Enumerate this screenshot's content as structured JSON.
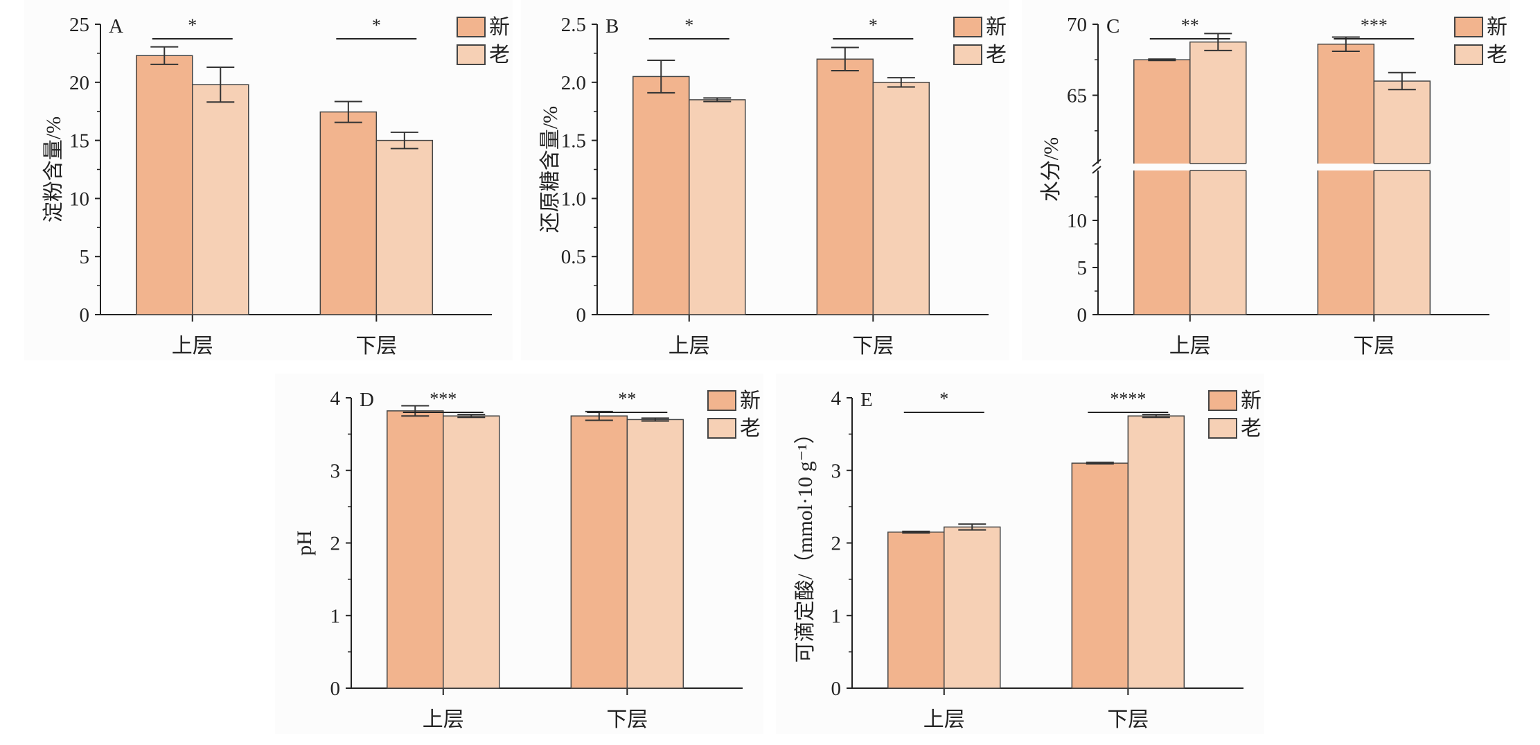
{
  "chart_data": [
    {
      "type": "bar",
      "panel": "A",
      "ylabel": "淀粉含量/%",
      "categories": [
        "上层",
        "下层"
      ],
      "ylim": [
        0,
        25
      ],
      "yticks": [
        0,
        5,
        10,
        15,
        20,
        25
      ],
      "series": [
        {
          "name": "新",
          "color": "#f2b48e",
          "values": [
            22.3,
            17.45
          ],
          "errors": [
            0.75,
            0.9
          ]
        },
        {
          "name": "老",
          "color": "#f6d0b5",
          "values": [
            19.8,
            15.0
          ],
          "errors": [
            1.5,
            0.7
          ]
        }
      ],
      "significance": [
        "*",
        "*"
      ]
    },
    {
      "type": "bar",
      "panel": "B",
      "ylabel": "还原糖含量/%",
      "categories": [
        "上层",
        "下层"
      ],
      "ylim": [
        0,
        2.5
      ],
      "yticks": [
        "0",
        "0.5",
        "1.0",
        "1.5",
        "2.0",
        "2.5"
      ],
      "series": [
        {
          "name": "新",
          "color": "#f2b48e",
          "values": [
            2.05,
            2.2
          ],
          "errors": [
            0.14,
            0.1
          ]
        },
        {
          "name": "老",
          "color": "#f6d0b5",
          "values": [
            1.85,
            2.0
          ],
          "errors": [
            0.015,
            0.04
          ]
        }
      ],
      "significance": [
        "*",
        "*"
      ]
    },
    {
      "type": "bar",
      "panel": "C",
      "ylabel": "水分/%",
      "categories": [
        "上层",
        "下层"
      ],
      "ylim": [
        0,
        70
      ],
      "axis_break": [
        15,
        60
      ],
      "yticks": [
        0,
        5,
        10,
        65,
        70
      ],
      "series": [
        {
          "name": "新",
          "color": "#f2b48e",
          "values": [
            67.5,
            68.6
          ],
          "errors": [
            0.05,
            0.5
          ]
        },
        {
          "name": "老",
          "color": "#f6d0b5",
          "values": [
            68.75,
            66.0
          ],
          "errors": [
            0.6,
            0.6
          ]
        }
      ],
      "significance": [
        "**",
        "***"
      ]
    },
    {
      "type": "bar",
      "panel": "D",
      "ylabel": "pH",
      "categories": [
        "上层",
        "下层"
      ],
      "ylim": [
        0,
        4
      ],
      "yticks": [
        0,
        1,
        2,
        3,
        4
      ],
      "series": [
        {
          "name": "新",
          "color": "#f2b48e",
          "values": [
            3.82,
            3.75
          ],
          "errors": [
            0.07,
            0.06
          ]
        },
        {
          "name": "老",
          "color": "#f6d0b5",
          "values": [
            3.75,
            3.7
          ],
          "errors": [
            0.02,
            0.02
          ]
        }
      ],
      "significance": [
        "***",
        "**"
      ]
    },
    {
      "type": "bar",
      "panel": "E",
      "ylabel": "可滴定酸/（mmol·10 g⁻¹）",
      "categories": [
        "上层",
        "下层"
      ],
      "ylim": [
        0,
        4
      ],
      "yticks": [
        0,
        1,
        2,
        3,
        4
      ],
      "series": [
        {
          "name": "新",
          "color": "#f2b48e",
          "values": [
            2.15,
            3.1
          ],
          "errors": [
            0.01,
            0.01
          ]
        },
        {
          "name": "老",
          "color": "#f6d0b5",
          "values": [
            2.22,
            3.75
          ],
          "errors": [
            0.04,
            0.02
          ]
        }
      ],
      "significance": [
        "*",
        "****"
      ]
    }
  ]
}
